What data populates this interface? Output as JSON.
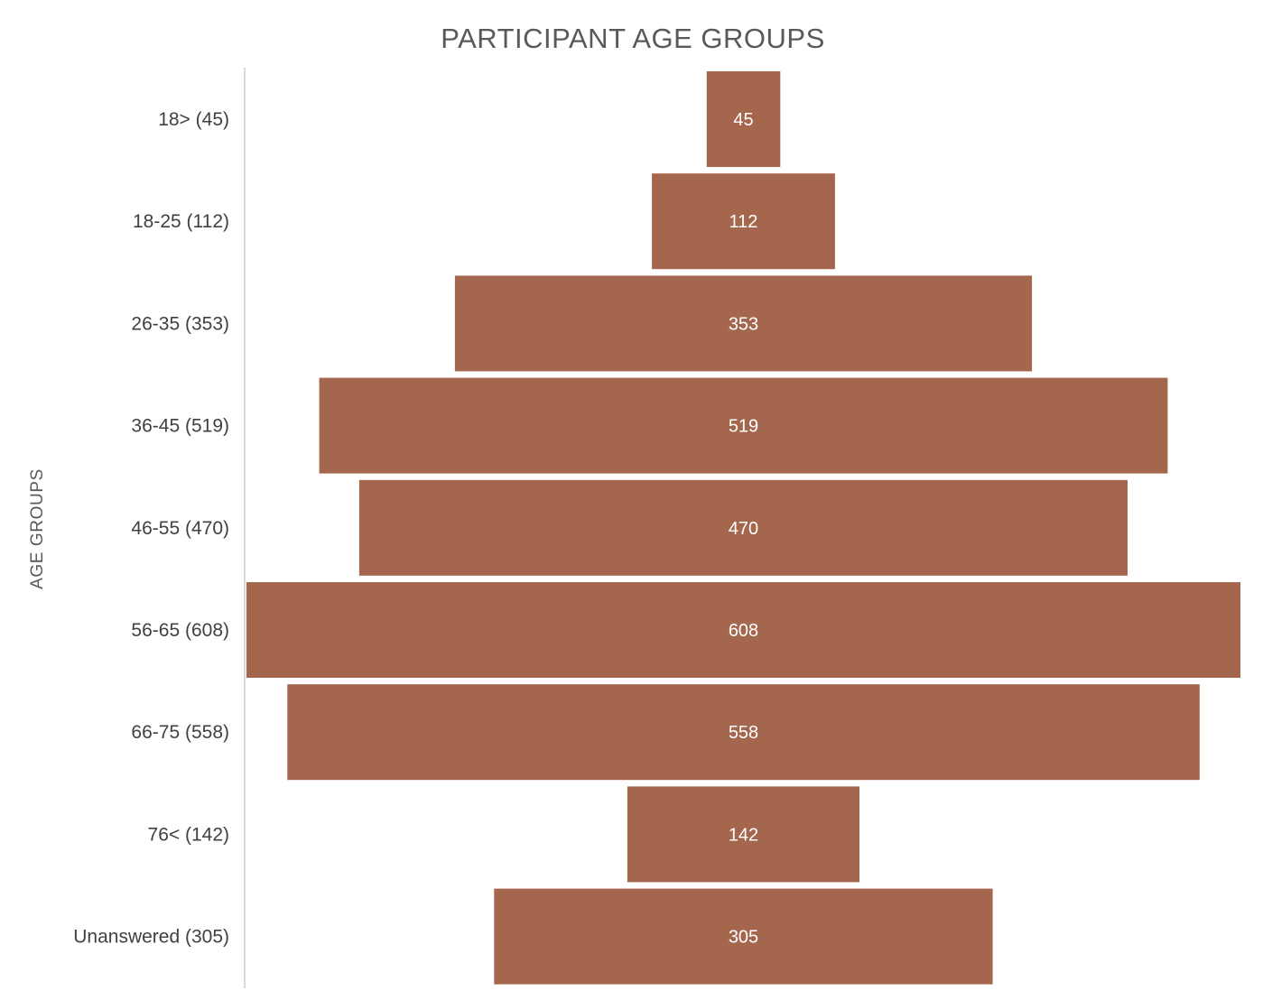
{
  "chart_data": {
    "type": "bar",
    "orientation": "horizontal",
    "layout": "centered-funnel",
    "title": "PARTICIPANT AGE GROUPS",
    "xlabel": "",
    "ylabel": "AGE GROUPS",
    "categories": [
      "18> (45)",
      "18-25 (112)",
      "26-35 (353)",
      "36-45 (519)",
      "46-55 (470)",
      "56-65 (608)",
      "66-75 (558)",
      "76< (142)",
      "Unanswered (305)"
    ],
    "values": [
      45,
      112,
      353,
      519,
      470,
      608,
      558,
      142,
      305
    ],
    "data_labels": [
      "45",
      "112",
      "353",
      "519",
      "470",
      "608",
      "558",
      "142",
      "305"
    ],
    "xlim": [
      0,
      608
    ],
    "grid": false,
    "legend": "none",
    "bar_color": "#A5664E",
    "title_color": "#595959",
    "label_color": "#404040"
  }
}
